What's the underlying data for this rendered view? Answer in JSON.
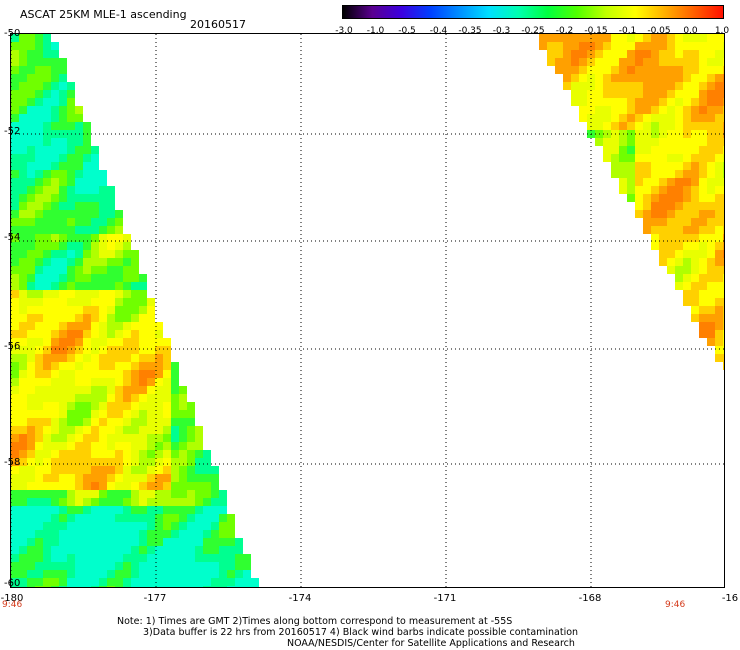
{
  "header": {
    "title": "ASCAT 25KM MLE-1 ascending",
    "date": "20160517"
  },
  "colorbar": {
    "labels": [
      "-3.0",
      "-1.0",
      "-0.5",
      "-0.4",
      "-0.35",
      "-0.3",
      "-0.25",
      "-0.2",
      "-0.15",
      "-0.1",
      "-0.05",
      "0.0",
      "1.0"
    ],
    "colors": [
      "#000000",
      "#5a0090",
      "#3c00e0",
      "#0040ff",
      "#0090ff",
      "#00e0ff",
      "#00ffb0",
      "#00ff40",
      "#50ff00",
      "#c0ff00",
      "#ffff00",
      "#ffb000",
      "#ff6000",
      "#ff1000"
    ]
  },
  "map": {
    "lat_labels": [
      "-50",
      "-52",
      "-54",
      "-56",
      "-58",
      "-60"
    ],
    "lon_labels": [
      "-180",
      "-177",
      "-174",
      "-171",
      "-168",
      "-16"
    ],
    "time_labels": [
      "9:46",
      "9:46"
    ]
  },
  "notes": {
    "line1": "Note: 1) Times are GMT 2)Times along bottom correspond to measurement at -55S",
    "line2": "3)Data buffer is 22 hrs from 20160517 4) Black wind barbs indicate possible contamination",
    "line3": "NOAA/NESDIS/Center for Satellite Applications and Research"
  }
}
